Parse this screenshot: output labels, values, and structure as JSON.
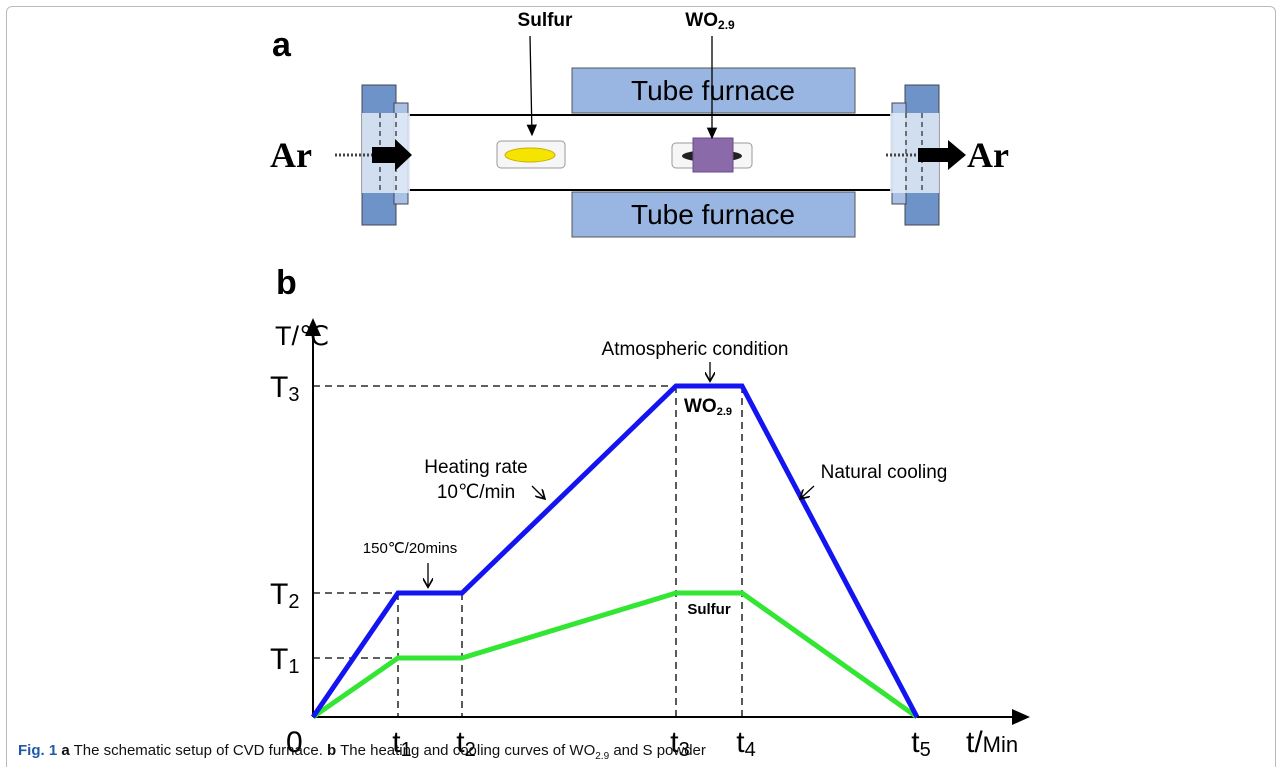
{
  "panel_a": {
    "label": "a",
    "sulfur_label": "Sulfur",
    "wo_label": {
      "main": "WO",
      "sub": "2.9"
    },
    "furnace_top": "Tube furnace",
    "furnace_bottom": "Tube furnace",
    "gas_in": "Ar",
    "gas_out": "Ar"
  },
  "panel_b": {
    "label": "b",
    "y_axis_label": "T/℃",
    "x_axis_label": {
      "main": "t/",
      "unit": "Min"
    },
    "origin": "0",
    "y_ticks": [
      {
        "main": "T",
        "sub": "1"
      },
      {
        "main": "T",
        "sub": "2"
      },
      {
        "main": "T",
        "sub": "3"
      }
    ],
    "x_ticks": [
      {
        "main": "t",
        "sub": "1"
      },
      {
        "main": "t",
        "sub": "2"
      },
      {
        "main": "t",
        "sub": "3"
      },
      {
        "main": "t",
        "sub": "4"
      },
      {
        "main": "t",
        "sub": "5"
      }
    ],
    "annotations": {
      "hold": "150℃/20mins",
      "heating_1": "Heating rate",
      "heating_2": "10℃/min",
      "atmosphere": "Atmospheric condition",
      "cooling": "Natural cooling",
      "wo_curve": {
        "main": "WO",
        "sub": "2.9"
      },
      "sulfur_curve": "Sulfur"
    }
  },
  "caption": {
    "fig": "Fig. 1",
    "a": "a",
    "a_text": " The schematic setup of CVD furnace. ",
    "b": "b",
    "b_text_1": " The heating and cooling curves of WO",
    "b_sub": "2.9",
    "b_text_2": " and S powder"
  }
}
